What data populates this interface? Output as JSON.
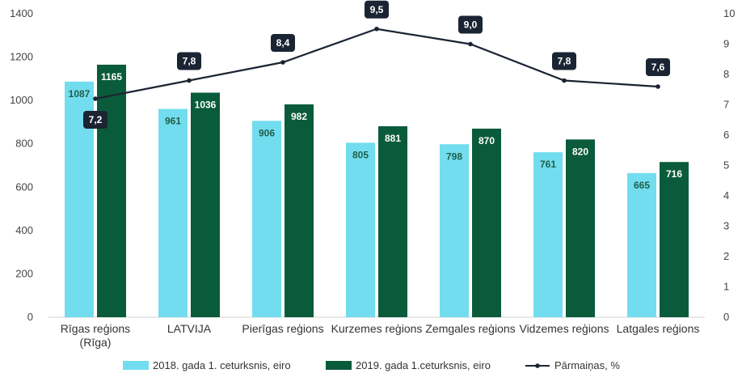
{
  "chart_data": {
    "type": "bar",
    "categories": [
      [
        "Rīgas reģions",
        "(Rīga)"
      ],
      [
        "LATVIJA"
      ],
      [
        "Pierīgas reģions"
      ],
      [
        "Kurzemes reģions"
      ],
      [
        "Zemgales reģions"
      ],
      [
        "Vidzemes reģions"
      ],
      [
        "Latgales reģions"
      ]
    ],
    "series": [
      {
        "name": "2018. gada 1. ceturksnis, eiro",
        "type": "bar",
        "axis": "left",
        "color": "#72DDEE",
        "label_color": "#1F5F4A",
        "values": [
          1087,
          961,
          906,
          805,
          798,
          761,
          665
        ],
        "labels": [
          "1087",
          "961",
          "906",
          "805",
          "798",
          "761",
          "665"
        ]
      },
      {
        "name": "2019. gada 1.ceturksnis, eiro",
        "type": "bar",
        "axis": "left",
        "color": "#0A5B3C",
        "label_color": "#FFFFFF",
        "values": [
          1165,
          1036,
          982,
          881,
          870,
          820,
          716
        ],
        "labels": [
          "1165",
          "1036",
          "982",
          "881",
          "870",
          "820",
          "716"
        ]
      },
      {
        "name": "Pārmaiņas, %",
        "type": "line",
        "axis": "right",
        "color": "#1B2433",
        "values": [
          7.2,
          7.8,
          8.4,
          9.5,
          9.0,
          7.8,
          7.6
        ],
        "labels": [
          "7,2",
          "7,8",
          "8,4",
          "9,5",
          "9,0",
          "7,8",
          "7,6"
        ]
      }
    ],
    "y_left": {
      "min": 0,
      "max": 1400,
      "step": 200,
      "ticks": [
        "0",
        "200",
        "400",
        "600",
        "800",
        "1000",
        "1200",
        "1400"
      ]
    },
    "y_right": {
      "min": 0,
      "max": 10,
      "step": 1,
      "ticks": [
        "0",
        "1",
        "2",
        "3",
        "4",
        "5",
        "6",
        "7",
        "8",
        "9",
        "10"
      ]
    },
    "grid": false,
    "legend_position": "bottom"
  }
}
